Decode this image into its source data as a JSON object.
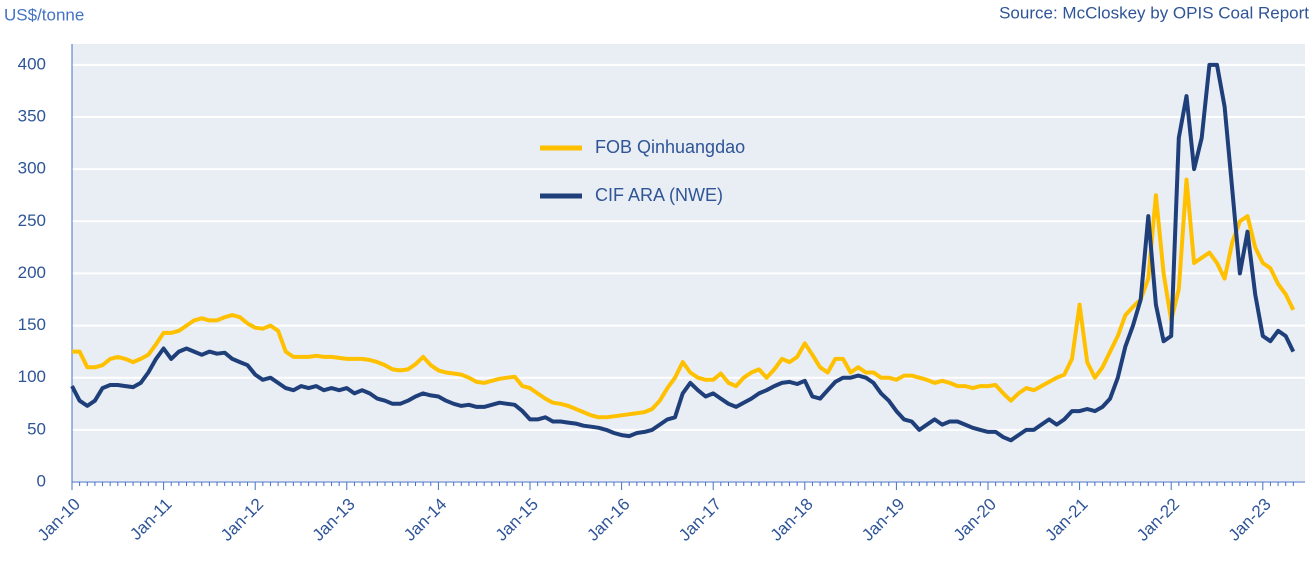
{
  "chart_data": {
    "type": "line",
    "y_label": "US$/tonne",
    "source": "Source: McCloskey by OPIS Coal Report",
    "categories": [
      "Jan-10",
      null,
      null,
      null,
      null,
      null,
      null,
      null,
      null,
      null,
      null,
      null,
      "Jan-11",
      null,
      null,
      null,
      null,
      null,
      null,
      null,
      null,
      null,
      null,
      null,
      "Jan-12",
      null,
      null,
      null,
      null,
      null,
      null,
      null,
      null,
      null,
      null,
      null,
      "Jan-13",
      null,
      null,
      null,
      null,
      null,
      null,
      null,
      null,
      null,
      null,
      null,
      "Jan-14",
      null,
      null,
      null,
      null,
      null,
      null,
      null,
      null,
      null,
      null,
      null,
      "Jan-15",
      null,
      null,
      null,
      null,
      null,
      null,
      null,
      null,
      null,
      null,
      null,
      "Jan-16",
      null,
      null,
      null,
      null,
      null,
      null,
      null,
      null,
      null,
      null,
      null,
      "Jan-17",
      null,
      null,
      null,
      null,
      null,
      null,
      null,
      null,
      null,
      null,
      null,
      "Jan-18",
      null,
      null,
      null,
      null,
      null,
      null,
      null,
      null,
      null,
      null,
      null,
      "Jan-19",
      null,
      null,
      null,
      null,
      null,
      null,
      null,
      null,
      null,
      null,
      null,
      "Jan-20",
      null,
      null,
      null,
      null,
      null,
      null,
      null,
      null,
      null,
      null,
      null,
      "Jan-21",
      null,
      null,
      null,
      null,
      null,
      null,
      null,
      null,
      null,
      null,
      null,
      "Jan-22",
      null,
      null,
      null,
      null,
      null,
      null,
      null,
      null,
      null,
      null,
      null,
      "Jan-23",
      null,
      null,
      null,
      null
    ],
    "series": [
      {
        "name": "FOB Qinhuangdao",
        "color": "#FFC000",
        "values": [
          125,
          125,
          110,
          110,
          112,
          118,
          120,
          118,
          115,
          118,
          122,
          132,
          143,
          143,
          145,
          150,
          155,
          157,
          155,
          155,
          158,
          160,
          158,
          152,
          148,
          147,
          150,
          145,
          125,
          120,
          120,
          120,
          121,
          120,
          120,
          119,
          118,
          118,
          118,
          117,
          115,
          112,
          108,
          107,
          108,
          113,
          120,
          112,
          107,
          105,
          104,
          103,
          100,
          96,
          95,
          97,
          99,
          100,
          101,
          92,
          90,
          85,
          80,
          76,
          75,
          73,
          70,
          67,
          64,
          62,
          62,
          63,
          64,
          65,
          66,
          67,
          70,
          78,
          90,
          100,
          115,
          105,
          100,
          98,
          98,
          104,
          95,
          92,
          100,
          105,
          108,
          100,
          108,
          118,
          115,
          120,
          133,
          122,
          110,
          105,
          118,
          118,
          105,
          110,
          105,
          105,
          100,
          100,
          98,
          102,
          102,
          100,
          98,
          95,
          97,
          95,
          92,
          92,
          90,
          92,
          92,
          93,
          85,
          78,
          85,
          90,
          88,
          92,
          96,
          100,
          103,
          118,
          170,
          115,
          100,
          110,
          125,
          140,
          160,
          168,
          175,
          195,
          275,
          200,
          155,
          185,
          290,
          210,
          215,
          220,
          210,
          195,
          230,
          250,
          255,
          225,
          210,
          205,
          190,
          180,
          165
        ]
      },
      {
        "name": "CIF ARA (NWE)",
        "color": "#1F3F7A",
        "values": [
          92,
          78,
          73,
          78,
          90,
          93,
          93,
          92,
          91,
          95,
          105,
          118,
          128,
          118,
          125,
          128,
          125,
          122,
          125,
          123,
          124,
          118,
          115,
          112,
          103,
          98,
          100,
          95,
          90,
          88,
          92,
          90,
          92,
          88,
          90,
          88,
          90,
          85,
          88,
          85,
          80,
          78,
          75,
          75,
          78,
          82,
          85,
          83,
          82,
          78,
          75,
          73,
          74,
          72,
          72,
          74,
          76,
          75,
          74,
          68,
          60,
          60,
          62,
          58,
          58,
          57,
          56,
          54,
          53,
          52,
          50,
          47,
          45,
          44,
          47,
          48,
          50,
          55,
          60,
          62,
          85,
          95,
          88,
          82,
          85,
          80,
          75,
          72,
          76,
          80,
          85,
          88,
          92,
          95,
          96,
          94,
          97,
          82,
          80,
          88,
          96,
          100,
          100,
          102,
          100,
          95,
          85,
          78,
          68,
          60,
          58,
          50,
          55,
          60,
          55,
          58,
          58,
          55,
          52,
          50,
          48,
          48,
          43,
          40,
          45,
          50,
          50,
          55,
          60,
          55,
          60,
          68,
          68,
          70,
          68,
          72,
          80,
          100,
          130,
          150,
          175,
          255,
          170,
          135,
          140,
          330,
          370,
          300,
          330,
          400,
          400,
          360,
          280,
          200,
          240,
          180,
          140,
          135,
          145,
          140,
          125
        ]
      }
    ],
    "ylim": [
      0,
      420
    ],
    "yticks": [
      0,
      50,
      100,
      150,
      200,
      250,
      300,
      350,
      400
    ],
    "grid": true
  }
}
